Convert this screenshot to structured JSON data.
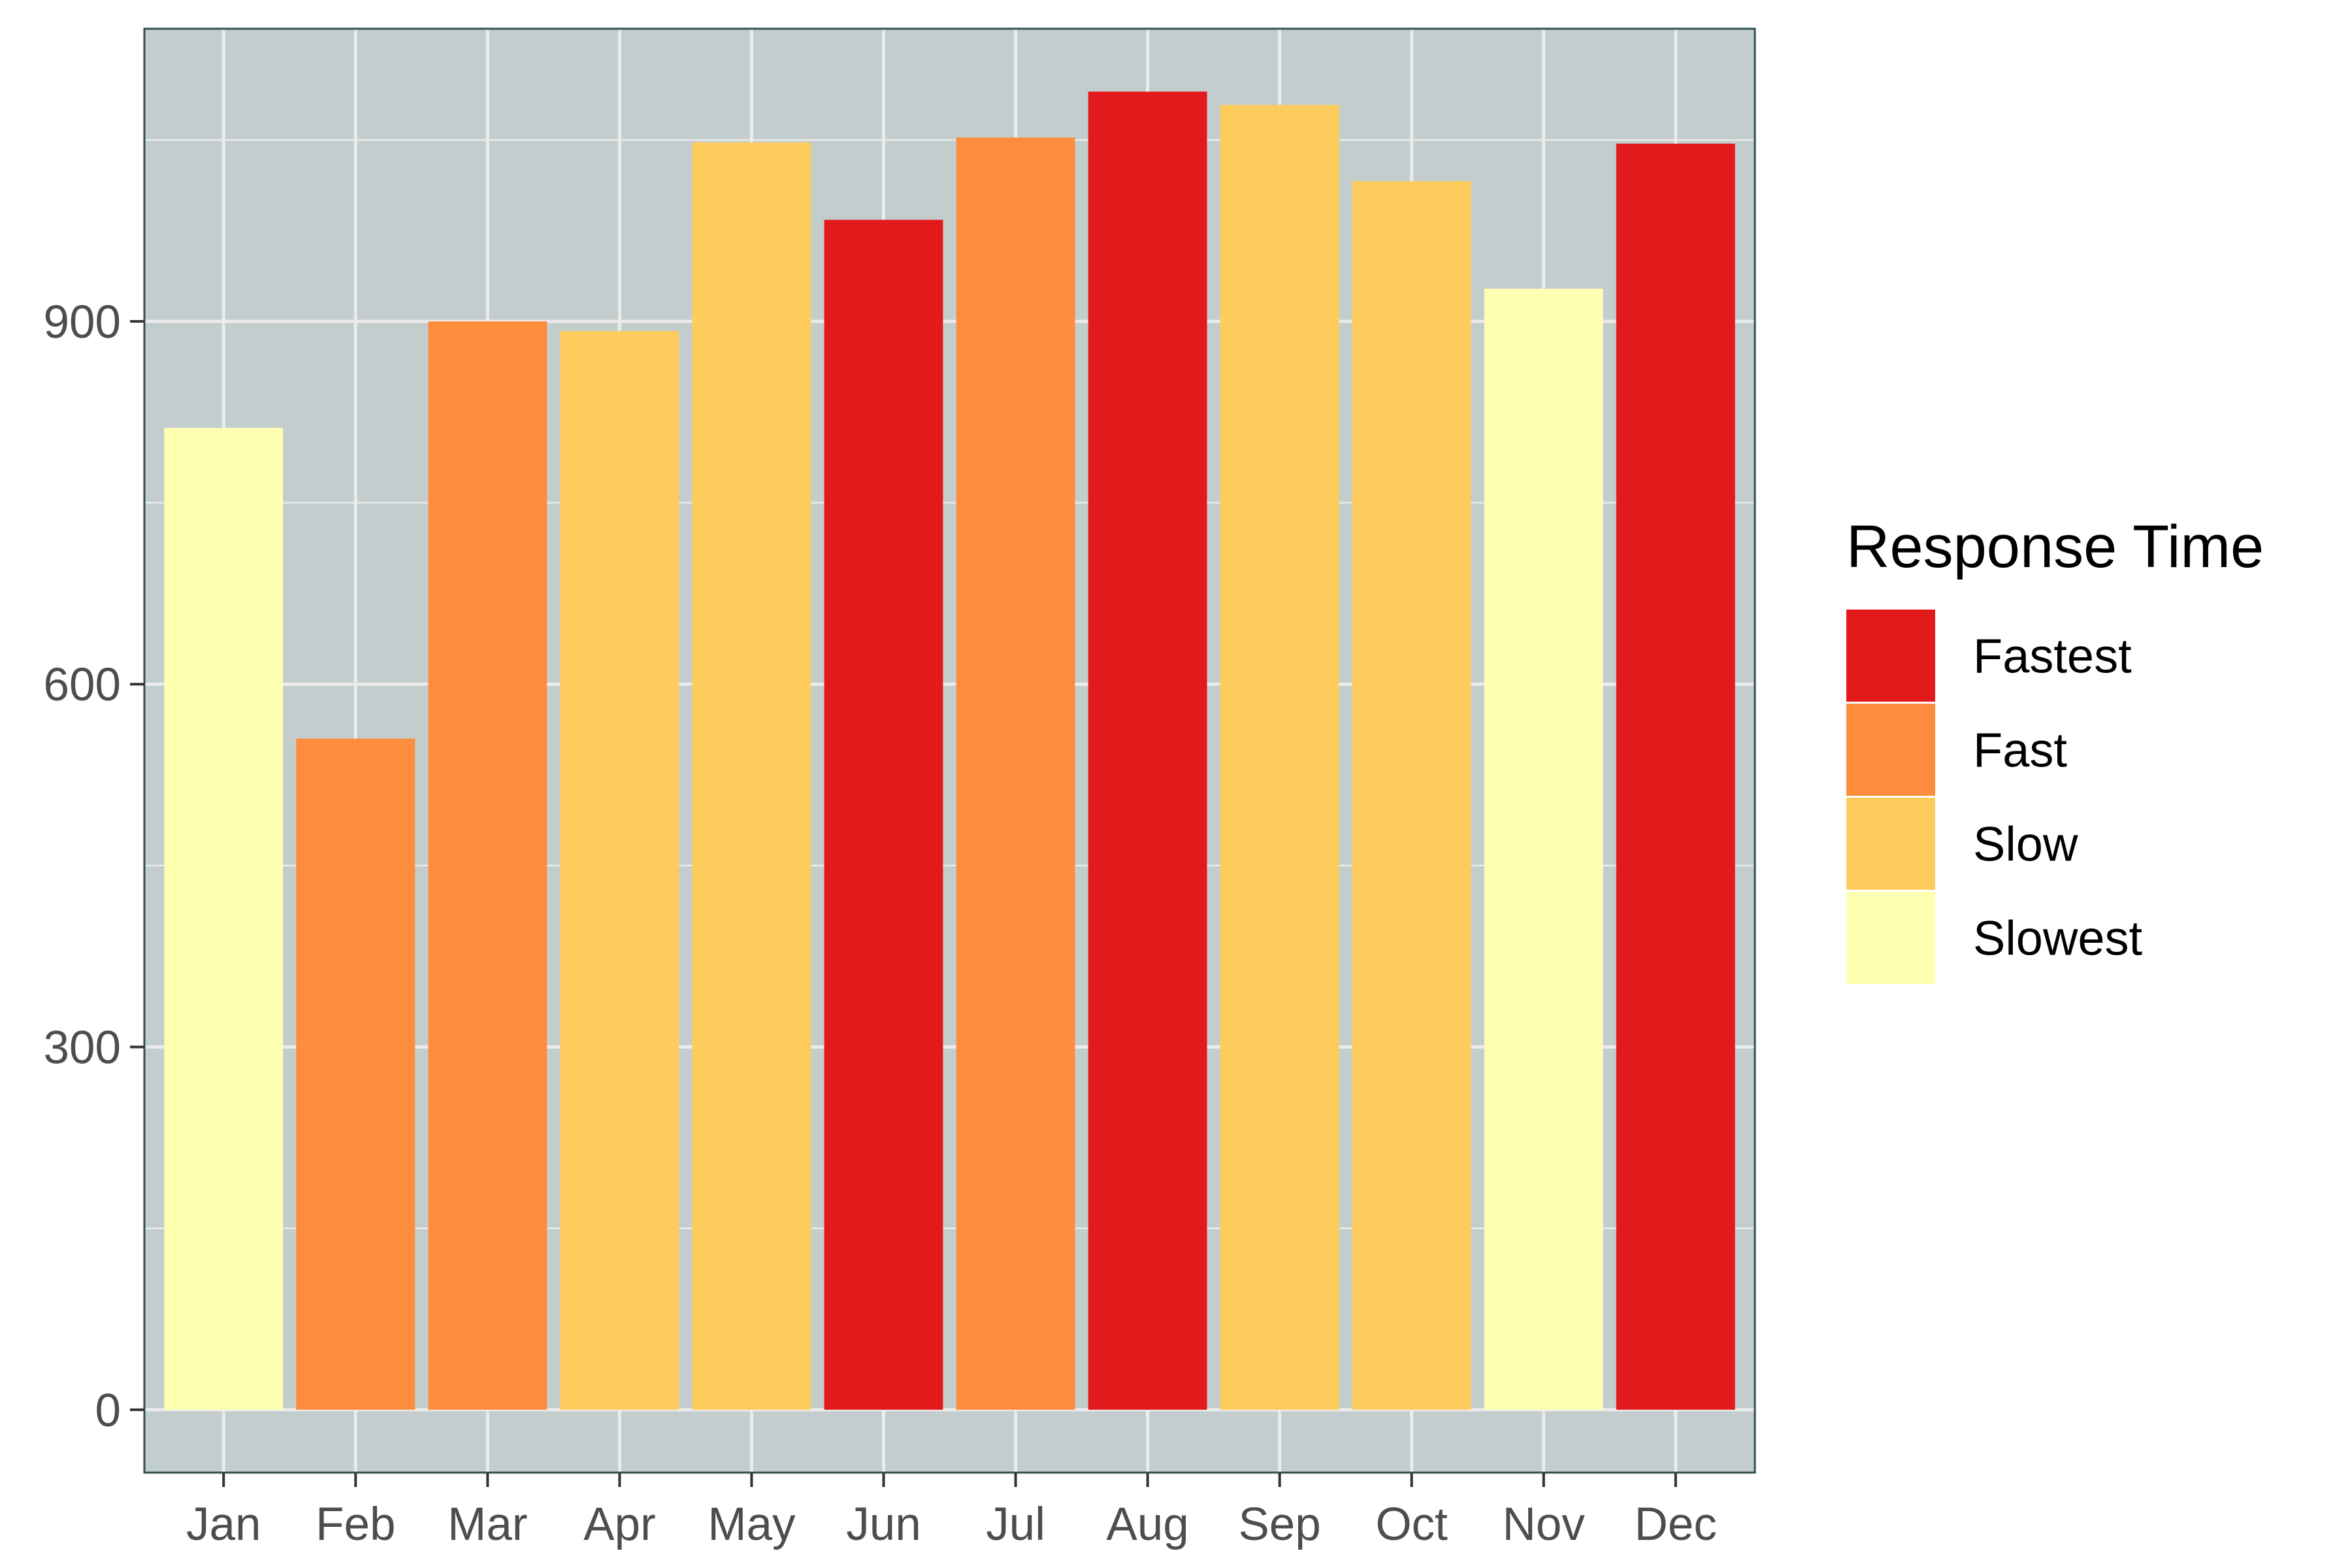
{
  "chart_data": {
    "type": "bar",
    "title": "",
    "xlabel": "",
    "ylabel": "",
    "categories": [
      "Jan",
      "Feb",
      "Mar",
      "Apr",
      "May",
      "Jun",
      "Jul",
      "Aug",
      "Sep",
      "Oct",
      "Nov",
      "Dec"
    ],
    "values": [
      812,
      555,
      900,
      892,
      1048,
      984,
      1052,
      1090,
      1079,
      1016,
      927,
      1047
    ],
    "groups": [
      "Slowest",
      "Fast",
      "Fast",
      "Slow",
      "Slow",
      "Fastest",
      "Fast",
      "Fastest",
      "Slow",
      "Slow",
      "Slowest",
      "Fastest"
    ],
    "ylim": [
      -52,
      1142
    ],
    "yticks": [
      "0",
      "300",
      "600",
      "900"
    ],
    "grid": true,
    "legend": {
      "title": "Response Time",
      "position": "right",
      "items": [
        {
          "label": "Fastest",
          "color": "#E31A1C"
        },
        {
          "label": "Fast",
          "color": "#FD8D3C"
        },
        {
          "label": "Slow",
          "color": "#FECC5C"
        },
        {
          "label": "Slowest",
          "color": "#FFFFB2"
        }
      ]
    },
    "colors": {
      "panel_background": "#C3CDCD",
      "panel_border": "#2F4F4F",
      "grid": "#EBEBEB"
    }
  }
}
